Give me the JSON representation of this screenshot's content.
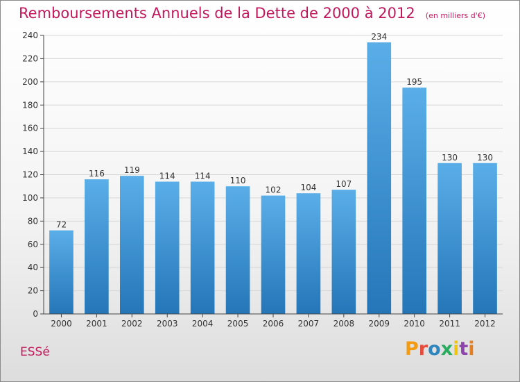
{
  "header": {
    "title": "Remboursements Annuels de la Dette de 2000 à 2012",
    "subtitle": "(en milliers d'€)"
  },
  "footer": {
    "commune": "ESSé",
    "brand_letters": [
      "P",
      "r",
      "o",
      "x",
      "i",
      "t",
      "i"
    ]
  },
  "colors": {
    "title": "#c2185b",
    "bar_top": "#5aaee8",
    "bar_bottom": "#2476b8",
    "grid": "#d6d6d6",
    "axis": "#444444",
    "brand": [
      "#f39c12",
      "#e74c3c",
      "#2e86c1",
      "#27ae60",
      "#f1c40f",
      "#8e44ad",
      "#e67e22"
    ]
  },
  "chart_data": {
    "type": "bar",
    "title": "Remboursements Annuels de la Dette de 2000 à 2012",
    "subtitle": "(en milliers d'€)",
    "xlabel": "",
    "ylabel": "",
    "categories": [
      "2000",
      "2001",
      "2002",
      "2003",
      "2004",
      "2005",
      "2006",
      "2007",
      "2008",
      "2009",
      "2010",
      "2011",
      "2012"
    ],
    "values": [
      72,
      116,
      119,
      114,
      114,
      110,
      102,
      104,
      107,
      234,
      195,
      130,
      130
    ],
    "value_labels": [
      "72",
      "116",
      "119",
      "114",
      "114",
      "110",
      "102",
      "104",
      "107",
      "234",
      "195",
      "130",
      "130"
    ],
    "ylim": [
      0,
      240
    ],
    "yticks": [
      0,
      20,
      40,
      60,
      80,
      100,
      120,
      140,
      160,
      180,
      200,
      220,
      240
    ],
    "ytick_labels": [
      "0",
      "20",
      "40",
      "60",
      "80",
      "100",
      "120",
      "140",
      "160",
      "180",
      "200",
      "220",
      "240"
    ],
    "grid": true,
    "legend": "none"
  }
}
